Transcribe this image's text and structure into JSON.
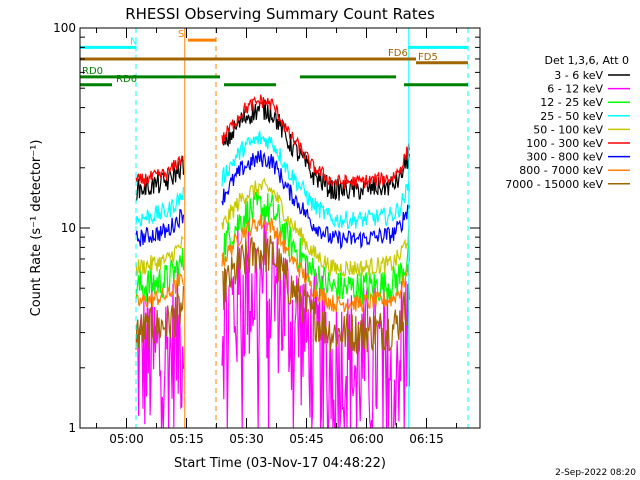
{
  "chart_data": {
    "type": "line",
    "title": "RHESSI Observing Summary Count Rates",
    "xlabel": "Start Time (03-Nov-17 04:48:22)",
    "ylabel": "Count Rate (s⁻¹ detector⁻¹)",
    "x_unit": "minutes after 04:48:22",
    "x_range": [
      0,
      100
    ],
    "y_range": [
      1,
      100
    ],
    "y_scale": "log",
    "x_ticks": [
      {
        "value": 11.63,
        "label": "05:00"
      },
      {
        "value": 26.63,
        "label": "05:15"
      },
      {
        "value": 41.63,
        "label": "05:30"
      },
      {
        "value": 56.63,
        "label": "05:45"
      },
      {
        "value": 71.63,
        "label": "06:00"
      },
      {
        "value": 86.63,
        "label": "06:15"
      }
    ],
    "x_minor_ticks": [
      4.13,
      19.13,
      34.13,
      49.13,
      64.13,
      79.13,
      94.13
    ],
    "y_ticks": [
      {
        "value": 1,
        "label": "1"
      },
      {
        "value": 10,
        "label": "10"
      },
      {
        "value": 100,
        "label": "100"
      }
    ],
    "legend": {
      "header": "Det 1,3,6, Att 0",
      "position": "right"
    },
    "series": [
      {
        "name": "3 - 6 keV",
        "color": "#000000",
        "base": 15.5,
        "noise": 0.06
      },
      {
        "name": "6 - 12 keV",
        "color": "#ff00ff",
        "base": 2.1,
        "noise": 0.45
      },
      {
        "name": "12 - 25 keV",
        "color": "#00ff00",
        "base": 5.0,
        "noise": 0.1
      },
      {
        "name": "25 - 50 keV",
        "color": "#00ffff",
        "base": 11.0,
        "noise": 0.05
      },
      {
        "name": "50 - 100 keV",
        "color": "#c8c800",
        "base": 6.3,
        "noise": 0.05
      },
      {
        "name": "100 - 300 keV",
        "color": "#ff0000",
        "base": 17.0,
        "noise": 0.04
      },
      {
        "name": "300 - 800 keV",
        "color": "#0000ff",
        "base": 8.8,
        "noise": 0.05
      },
      {
        "name": "800 - 7000 keV",
        "color": "#ff8000",
        "base": 4.2,
        "noise": 0.05
      },
      {
        "name": "7000 - 15000 keV",
        "color": "#a06400",
        "base": 3.0,
        "noise": 0.12
      }
    ],
    "data_segments": [
      [
        14,
        26
      ],
      [
        35.5,
        82.5
      ]
    ],
    "gap_scale": {
      "x": [
        26,
        27,
        35.5
      ],
      "factor": [
        1.0,
        0.12,
        1.0
      ]
    },
    "envelope": {
      "x": [
        14,
        22,
        26,
        35.5,
        41,
        45,
        48,
        52,
        58,
        63,
        70,
        78,
        80,
        82.5
      ],
      "factor": [
        1.0,
        1.1,
        1.35,
        1.6,
        2.3,
        2.55,
        2.45,
        1.75,
        1.2,
        1.0,
        1.0,
        1.05,
        1.15,
        1.5
      ]
    },
    "status_bars": [
      {
        "label": "N",
        "color": "#00ffff",
        "y": 80,
        "segments": [
          [
            0,
            14
          ],
          [
            82,
            97
          ]
        ],
        "label_x": 12.5
      },
      {
        "label": "S",
        "color": "#ff8000",
        "y": 87,
        "segments": [
          [
            27,
            34
          ]
        ],
        "label_x": 24.5
      },
      {
        "label": "FD5",
        "color": "#a06400",
        "y": 67,
        "segments": [
          [
            84,
            97
          ]
        ],
        "label_x": 84.5
      },
      {
        "label": "FD6",
        "color": "#a06400",
        "y": 70,
        "segments": [
          [
            0,
            84
          ]
        ],
        "label_x": 77
      },
      {
        "label": "RD0",
        "color": "#008000",
        "y": 57,
        "segments": [
          [
            0,
            35
          ],
          [
            55,
            79
          ]
        ],
        "label_x": 0.5
      },
      {
        "label": "RD6",
        "color": "#008000",
        "y": 52,
        "segments": [
          [
            0,
            8
          ],
          [
            36,
            49
          ],
          [
            81,
            97
          ]
        ],
        "label_x": 9
      }
    ],
    "vertical_lines": [
      {
        "x": 0,
        "color": "#00ffff",
        "style": "solid"
      },
      {
        "x": 14,
        "color": "#00ffff",
        "style": "dashed"
      },
      {
        "x": 26.2,
        "color": "#ff8000",
        "style": "solid"
      },
      {
        "x": 34,
        "color": "#ff8000",
        "style": "dashed"
      },
      {
        "x": 82.2,
        "color": "#00ffff",
        "style": "solid"
      },
      {
        "x": 97,
        "color": "#00ffff",
        "style": "dashed"
      }
    ]
  },
  "timestamp": "2-Sep-2022 08:20"
}
